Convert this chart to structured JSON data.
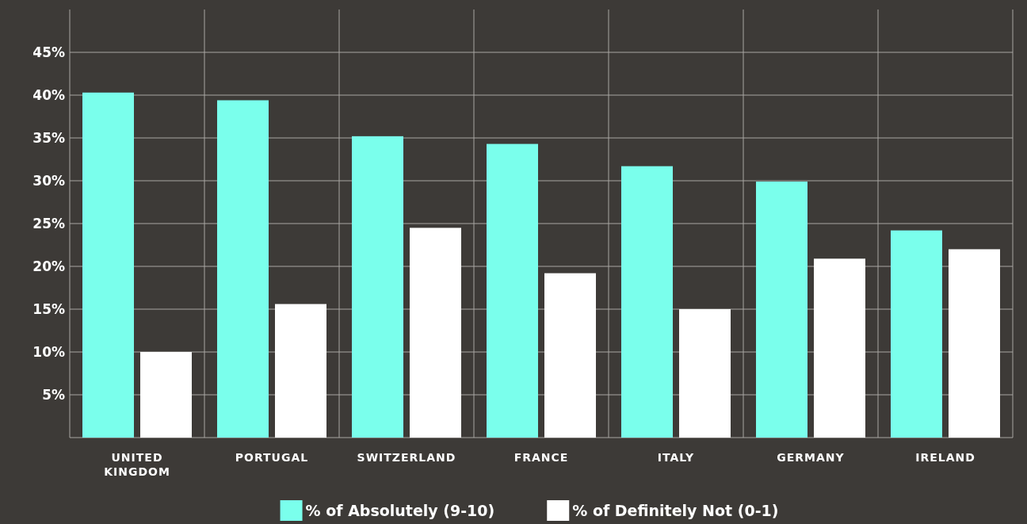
{
  "chart_data": {
    "type": "bar",
    "categories": [
      "UNITED KINGDOM",
      "PORTUGAL",
      "SWITZERLAND",
      "FRANCE",
      "ITALY",
      "GERMANY",
      "IRELAND"
    ],
    "series": [
      {
        "name": "% of Absolutely (9-10)",
        "color": "#7affec",
        "values": [
          40.3,
          39.4,
          35.2,
          34.3,
          31.7,
          29.9,
          24.2
        ]
      },
      {
        "name": "% of Definitely Not (0-1)",
        "color": "#ffffff",
        "values": [
          10.0,
          15.6,
          24.5,
          19.2,
          15.0,
          20.9,
          22.0
        ]
      }
    ],
    "ylim": [
      0,
      50
    ],
    "yticks": [
      {
        "value": 5,
        "label": "5%"
      },
      {
        "value": 10,
        "label": "10%"
      },
      {
        "value": 15,
        "label": "15%"
      },
      {
        "value": 20,
        "label": "20%"
      },
      {
        "value": 25,
        "label": "25%"
      },
      {
        "value": 30,
        "label": "30%"
      },
      {
        "value": 35,
        "label": "35%"
      },
      {
        "value": 40,
        "label": "40%"
      },
      {
        "value": 45,
        "label": "45%"
      }
    ],
    "grid": true,
    "legend": "bottom"
  }
}
